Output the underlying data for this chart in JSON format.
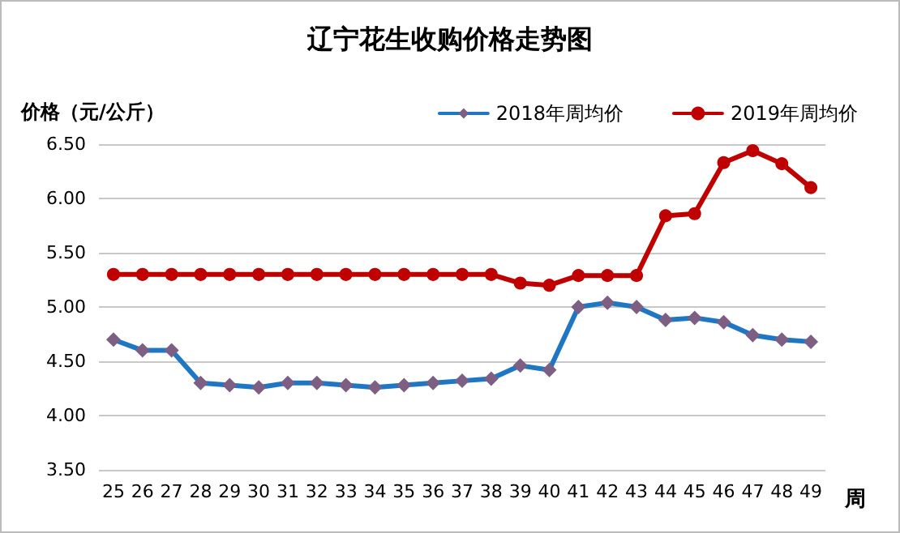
{
  "chart_data": {
    "type": "line",
    "title": "辽宁花生收购价格走势图",
    "ylabel": "价格（元/公斤）",
    "xlabel": "周",
    "categories": [
      "25",
      "26",
      "27",
      "28",
      "29",
      "30",
      "31",
      "32",
      "33",
      "34",
      "35",
      "36",
      "37",
      "38",
      "39",
      "40",
      "41",
      "42",
      "43",
      "44",
      "45",
      "46",
      "47",
      "48",
      "49"
    ],
    "series": [
      {
        "name": "2018年周均价",
        "color": "#1f77c4",
        "marker": "diamond",
        "values": [
          4.7,
          4.6,
          4.6,
          4.3,
          4.28,
          4.26,
          4.3,
          4.3,
          4.28,
          4.26,
          4.28,
          4.3,
          4.32,
          4.34,
          4.46,
          4.42,
          5.0,
          5.04,
          5.0,
          4.88,
          4.9,
          4.86,
          4.74,
          4.7,
          4.68
        ]
      },
      {
        "name": "2019年周均价",
        "color": "#c00000",
        "marker": "circle",
        "values": [
          5.3,
          5.3,
          5.3,
          5.3,
          5.3,
          5.3,
          5.3,
          5.3,
          5.3,
          5.3,
          5.3,
          5.3,
          5.3,
          5.3,
          5.22,
          5.2,
          5.29,
          5.29,
          5.29,
          5.84,
          5.86,
          6.33,
          6.44,
          6.32,
          6.1
        ]
      }
    ],
    "ylim": [
      3.5,
      6.5
    ],
    "yticks": [
      {
        "value": 3.5,
        "label": "3.50"
      },
      {
        "value": 4,
        "label": "4.00"
      },
      {
        "value": 4.5,
        "label": "4.50"
      },
      {
        "value": 5,
        "label": "5.00"
      },
      {
        "value": 5.5,
        "label": "5.50"
      },
      {
        "value": 6,
        "label": "6.00"
      },
      {
        "value": 6.5,
        "label": "6.50"
      }
    ],
    "grid": "y",
    "legend": "top right",
    "line_style": "solid"
  }
}
